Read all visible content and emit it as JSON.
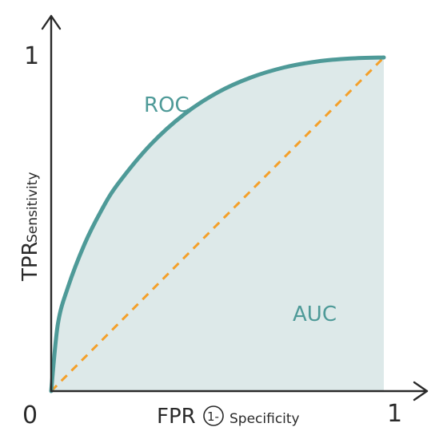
{
  "chart_data": {
    "type": "line",
    "title": "",
    "xlabel": "FPR",
    "xlabel_circled": "1-",
    "xlabel_suffix": "Specificity",
    "ylabel": "TPR",
    "ylabel_suffix": "Sensitivity",
    "xlim": [
      0,
      1
    ],
    "ylim": [
      0,
      1
    ],
    "x_ticks": [
      "0",
      "1"
    ],
    "y_ticks": [
      "1"
    ],
    "grid": false,
    "series": [
      {
        "name": "ROC",
        "style": "solid",
        "color": "#4e9a98",
        "x": [
          0,
          0.02,
          0.05,
          0.1,
          0.15,
          0.2,
          0.3,
          0.4,
          0.5,
          0.6,
          0.7,
          0.8,
          0.9,
          1.0
        ],
        "y": [
          0,
          0.2,
          0.31,
          0.44,
          0.54,
          0.62,
          0.74,
          0.83,
          0.895,
          0.94,
          0.97,
          0.988,
          0.997,
          1.0
        ]
      },
      {
        "name": "",
        "style": "dashed",
        "color": "#f4a02a",
        "x": [
          0,
          1
        ],
        "y": [
          0,
          1
        ]
      }
    ],
    "area": {
      "name": "AUC",
      "color": "#dde9e9",
      "text_color": "#4e9a98"
    }
  }
}
